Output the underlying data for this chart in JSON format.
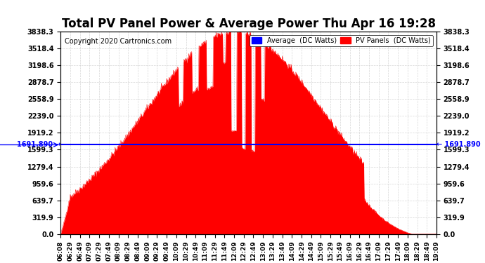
{
  "title": "Total PV Panel Power & Average Power Thu Apr 16 19:28",
  "copyright": "Copyright 2020 Cartronics.com",
  "average_value": 1691.89,
  "average_label": "1691.890",
  "ymax": 3838.3,
  "yticks": [
    0.0,
    319.9,
    639.7,
    959.6,
    1279.4,
    1599.3,
    1919.2,
    2239.0,
    2558.9,
    2878.7,
    3198.6,
    3518.4,
    3838.3
  ],
  "legend_avg_label": "Average  (DC Watts)",
  "legend_pv_label": "PV Panels  (DC Watts)",
  "bg_color": "#ffffff",
  "plot_bg_color": "#ffffff",
  "fill_color": "#ff0000",
  "avg_line_color": "#0000ff",
  "grid_color": "#cccccc",
  "xtick_labels": [
    "06:08",
    "06:29",
    "06:49",
    "07:09",
    "07:29",
    "07:49",
    "08:09",
    "08:29",
    "08:49",
    "09:09",
    "09:29",
    "09:49",
    "10:09",
    "10:29",
    "10:49",
    "11:09",
    "11:29",
    "11:49",
    "12:09",
    "12:29",
    "12:49",
    "13:09",
    "13:29",
    "13:49",
    "14:09",
    "14:29",
    "14:49",
    "15:09",
    "15:29",
    "15:49",
    "16:09",
    "16:29",
    "16:49",
    "17:09",
    "17:29",
    "17:49",
    "18:09",
    "18:29",
    "18:49",
    "19:09"
  ]
}
